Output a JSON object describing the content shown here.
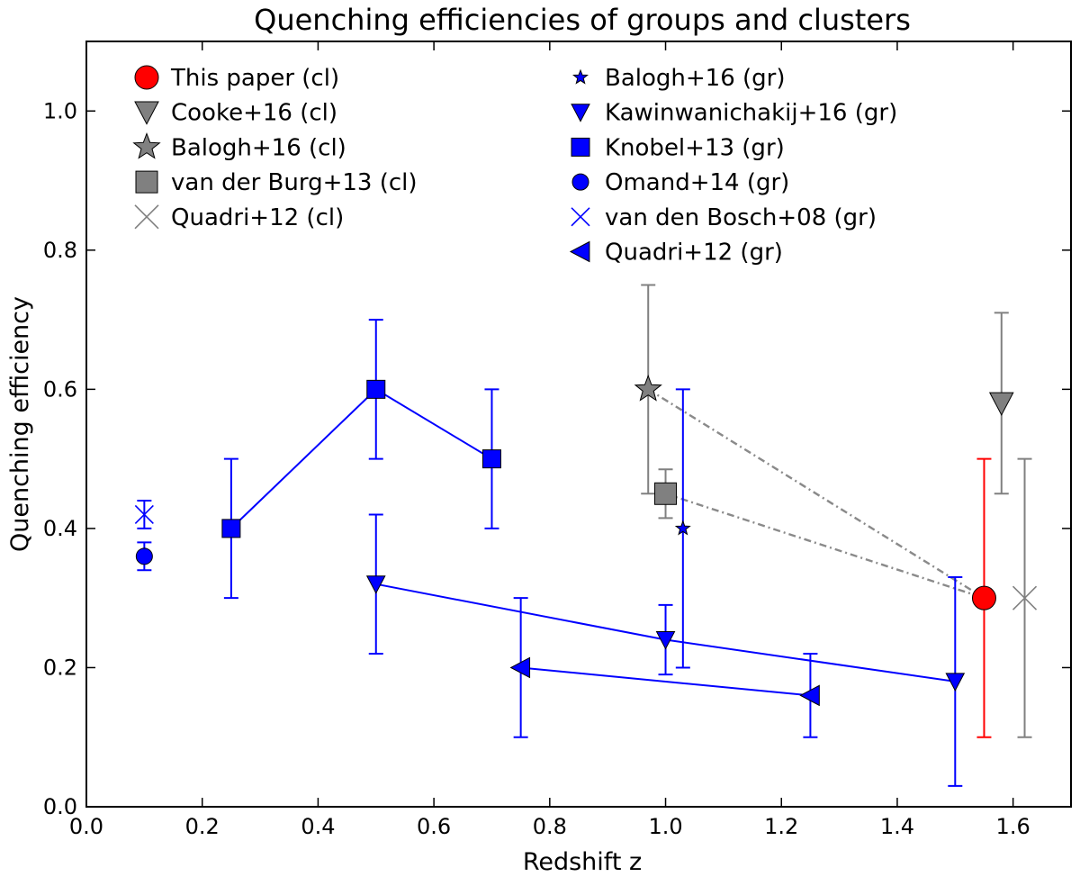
{
  "chart_data": {
    "type": "scatter",
    "title": "Quenching efficiencies of groups and clusters",
    "xlabel": "Redshift z",
    "ylabel": "Quenching efficiency",
    "xlim": [
      0.0,
      1.7
    ],
    "ylim": [
      0.0,
      1.1
    ],
    "xticks": [
      "0.0",
      "0.2",
      "0.4",
      "0.6",
      "0.8",
      "1.0",
      "1.2",
      "1.4",
      "1.6"
    ],
    "yticks": [
      "0.0",
      "0.2",
      "0.4",
      "0.6",
      "0.8",
      "1.0"
    ],
    "legend_position": "upper, two columns",
    "colors": {
      "red": "#ff0000",
      "blue": "#0000ff",
      "gray": "#808080",
      "dashed": "#8a8a8a"
    },
    "series": [
      {
        "name": "This paper (cl)",
        "marker": "circle-large",
        "color": "#ff0000",
        "line": false,
        "points": [
          {
            "x": 1.55,
            "y": 0.3,
            "ylo": 0.1,
            "yhi": 0.5
          }
        ]
      },
      {
        "name": "Cooke+16 (cl)",
        "marker": "triangle-down-large",
        "color": "#808080",
        "line": false,
        "points": [
          {
            "x": 1.58,
            "y": 0.58,
            "ylo": 0.45,
            "yhi": 0.71
          }
        ]
      },
      {
        "name": "Balogh+16 (cl)",
        "marker": "star-large",
        "color": "#808080",
        "line": false,
        "points": [
          {
            "x": 0.97,
            "y": 0.6,
            "ylo": 0.45,
            "yhi": 0.75
          }
        ]
      },
      {
        "name": "van der Burg+13 (cl)",
        "marker": "square-large",
        "color": "#808080",
        "line": false,
        "points": [
          {
            "x": 1.0,
            "y": 0.45,
            "ylo": 0.415,
            "yhi": 0.485
          }
        ]
      },
      {
        "name": "Quadri+12 (cl)",
        "marker": "x-large",
        "color": "#808080",
        "line": false,
        "points": [
          {
            "x": 1.62,
            "y": 0.3,
            "ylo": 0.1,
            "yhi": 0.5
          }
        ]
      },
      {
        "name": "Balogh+16 (gr)",
        "marker": "star-small",
        "color": "#0000ff",
        "line": false,
        "points": [
          {
            "x": 1.03,
            "y": 0.4,
            "ylo": 0.2,
            "yhi": 0.6
          }
        ]
      },
      {
        "name": "Kawinwanichakij+16 (gr)",
        "marker": "triangle-down",
        "color": "#0000ff",
        "line": true,
        "points": [
          {
            "x": 0.5,
            "y": 0.32,
            "ylo": 0.22,
            "yhi": 0.42
          },
          {
            "x": 1.0,
            "y": 0.24,
            "ylo": 0.19,
            "yhi": 0.29
          },
          {
            "x": 1.5,
            "y": 0.18,
            "ylo": 0.03,
            "yhi": 0.33
          }
        ]
      },
      {
        "name": "Knobel+13 (gr)",
        "marker": "square",
        "color": "#0000ff",
        "line": true,
        "points": [
          {
            "x": 0.25,
            "y": 0.4,
            "ylo": 0.3,
            "yhi": 0.5
          },
          {
            "x": 0.5,
            "y": 0.6,
            "ylo": 0.5,
            "yhi": 0.7
          },
          {
            "x": 0.7,
            "y": 0.5,
            "ylo": 0.4,
            "yhi": 0.6
          }
        ]
      },
      {
        "name": "Omand+14 (gr)",
        "marker": "circle",
        "color": "#0000ff",
        "line": false,
        "points": [
          {
            "x": 0.1,
            "y": 0.36,
            "ylo": 0.34,
            "yhi": 0.38
          }
        ]
      },
      {
        "name": "van den Bosch+08 (gr)",
        "marker": "x",
        "color": "#0000ff",
        "line": false,
        "points": [
          {
            "x": 0.1,
            "y": 0.42,
            "ylo": 0.4,
            "yhi": 0.44
          }
        ]
      },
      {
        "name": "Quadri+12 (gr)",
        "marker": "triangle-left",
        "color": "#0000ff",
        "line": true,
        "points": [
          {
            "x": 0.75,
            "y": 0.2,
            "ylo": 0.1,
            "yhi": 0.3
          },
          {
            "x": 1.25,
            "y": 0.16,
            "ylo": 0.1,
            "yhi": 0.22
          }
        ]
      }
    ],
    "connectors": [
      {
        "from": [
          0.97,
          0.6
        ],
        "to": [
          1.55,
          0.3
        ],
        "style": "dash-dot"
      },
      {
        "from": [
          1.0,
          0.45
        ],
        "to": [
          1.55,
          0.3
        ],
        "style": "dash-dot"
      }
    ]
  }
}
